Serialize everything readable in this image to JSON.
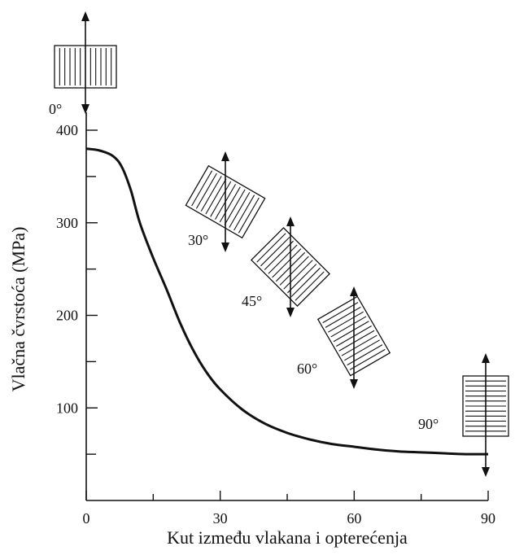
{
  "chart_data": {
    "type": "line",
    "title": "",
    "xlabel": "Kut između vlakana i opterećenja",
    "ylabel": "Vlačna čvrstoća (MPa)",
    "xlim": [
      0,
      90
    ],
    "ylim": [
      0,
      400
    ],
    "x_ticks": [
      0,
      30,
      60,
      90
    ],
    "x_tick_labels": [
      "0",
      "30",
      "60",
      "90"
    ],
    "y_ticks": [
      100,
      200,
      300,
      400
    ],
    "y_tick_labels": [
      "100",
      "200",
      "300",
      "400"
    ],
    "grid": false,
    "series": [
      {
        "x": [
          0,
          3,
          6,
          8,
          10,
          12,
          15,
          18,
          21,
          24,
          27,
          30,
          35,
          40,
          45,
          50,
          55,
          60,
          65,
          70,
          75,
          80,
          85,
          90
        ],
        "y": [
          380,
          378,
          372,
          360,
          335,
          300,
          262,
          228,
          192,
          162,
          138,
          120,
          98,
          83,
          73,
          66,
          61,
          58,
          55,
          53,
          52,
          51,
          50,
          50
        ]
      }
    ],
    "annotations": [
      {
        "label": "0°",
        "angle": 0
      },
      {
        "label": "30°",
        "angle": 30
      },
      {
        "label": "45°",
        "angle": 45
      },
      {
        "label": "60°",
        "angle": 60
      },
      {
        "label": "90°",
        "angle": 90
      }
    ]
  }
}
